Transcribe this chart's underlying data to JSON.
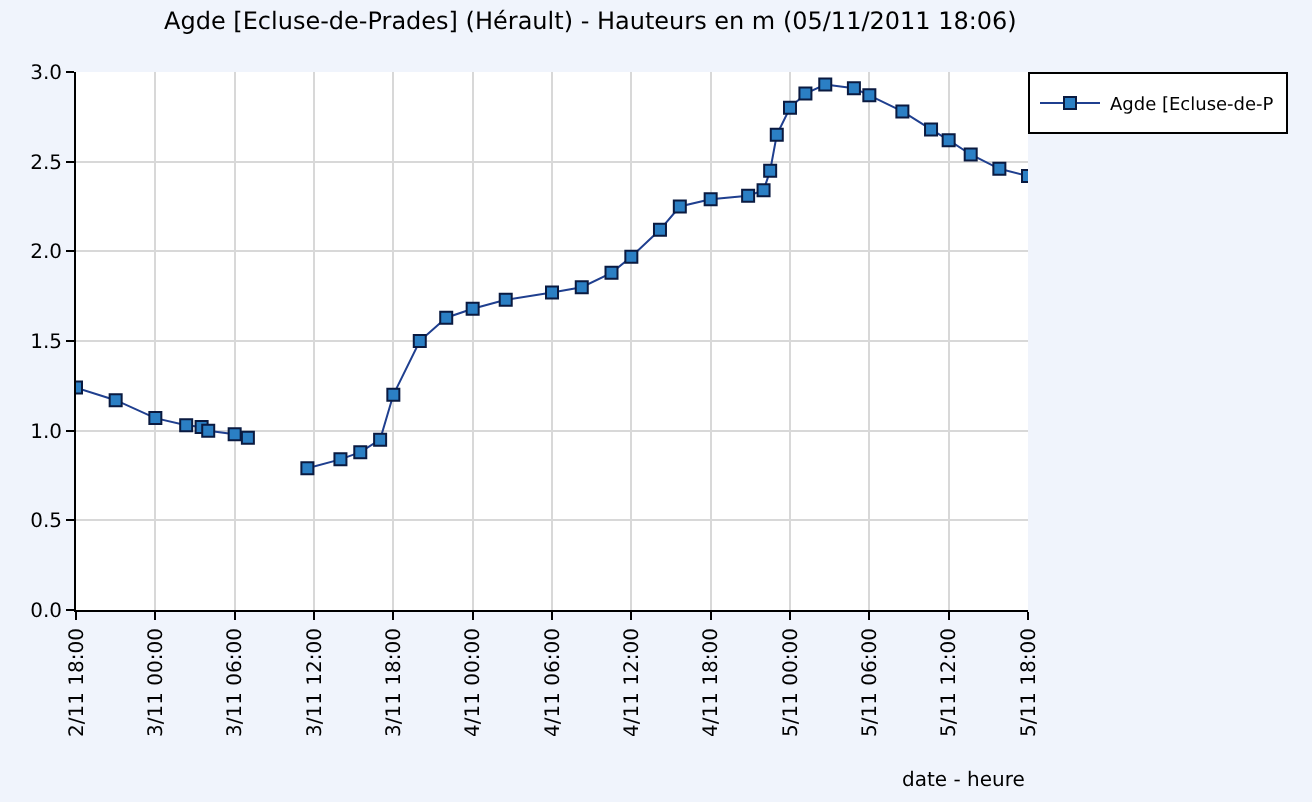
{
  "chart_data": {
    "type": "line",
    "title": "Agde [Ecluse-de-Prades] (Hérault) - Hauteurs en m (05/11/2011 18:06)",
    "xlabel": "date - heure",
    "x": [
      "2011-11-02T18:00",
      "2011-11-02T21:00",
      "2011-11-03T00:00",
      "2011-11-03T02:20",
      "2011-11-03T03:30",
      "2011-11-03T04:00",
      "2011-11-03T06:00",
      "2011-11-03T07:00",
      "2011-11-03T09:00",
      "2011-11-03T11:30",
      "2011-11-03T14:00",
      "2011-11-03T15:30",
      "2011-11-03T17:00",
      "2011-11-03T18:00",
      "2011-11-03T20:00",
      "2011-11-03T22:00",
      "2011-11-04T00:00",
      "2011-11-04T02:30",
      "2011-11-04T06:00",
      "2011-11-04T08:15",
      "2011-11-04T10:30",
      "2011-11-04T12:00",
      "2011-11-04T14:10",
      "2011-11-04T15:40",
      "2011-11-04T18:00",
      "2011-11-04T20:50",
      "2011-11-04T22:00",
      "2011-11-04T22:30",
      "2011-11-04T23:00",
      "2011-11-05T00:00",
      "2011-11-05T01:10",
      "2011-11-05T02:40",
      "2011-11-05T04:50",
      "2011-11-05T06:00",
      "2011-11-05T08:30",
      "2011-11-05T10:40",
      "2011-11-05T12:00",
      "2011-11-05T13:40",
      "2011-11-05T15:50",
      "2011-11-05T18:00"
    ],
    "series": [
      {
        "name": "Agde [Ecluse-de-P",
        "color": "#2b7fc4",
        "values": [
          1.24,
          1.17,
          1.07,
          1.03,
          1.02,
          1.0,
          0.98,
          0.96,
          null,
          0.79,
          0.84,
          0.88,
          0.95,
          1.2,
          1.5,
          1.63,
          1.68,
          1.73,
          1.77,
          1.8,
          1.88,
          1.97,
          2.12,
          2.25,
          2.29,
          2.31,
          2.34,
          2.45,
          2.65,
          2.8,
          2.88,
          2.93,
          2.91,
          2.87,
          2.78,
          2.68,
          2.62,
          2.54,
          2.46,
          2.42
        ]
      }
    ],
    "xlim": [
      "2011-11-02T18:00",
      "2011-11-05T18:00"
    ],
    "xticks": [
      {
        "value": "2011-11-02T18:00",
        "label": "2/11 18:00"
      },
      {
        "value": "2011-11-03T00:00",
        "label": "3/11 00:00"
      },
      {
        "value": "2011-11-03T06:00",
        "label": "3/11 06:00"
      },
      {
        "value": "2011-11-03T12:00",
        "label": "3/11 12:00"
      },
      {
        "value": "2011-11-03T18:00",
        "label": "3/11 18:00"
      },
      {
        "value": "2011-11-04T00:00",
        "label": "4/11 00:00"
      },
      {
        "value": "2011-11-04T06:00",
        "label": "4/11 06:00"
      },
      {
        "value": "2011-11-04T12:00",
        "label": "4/11 12:00"
      },
      {
        "value": "2011-11-04T18:00",
        "label": "4/11 18:00"
      },
      {
        "value": "2011-11-05T00:00",
        "label": "5/11 00:00"
      },
      {
        "value": "2011-11-05T06:00",
        "label": "5/11 06:00"
      },
      {
        "value": "2011-11-05T12:00",
        "label": "5/11 12:00"
      },
      {
        "value": "2011-11-05T18:00",
        "label": "5/11 18:00"
      }
    ],
    "ylim": [
      0,
      3
    ],
    "yticks": [
      {
        "value": 0,
        "label": "0.0"
      },
      0.5,
      {
        "value": 1,
        "label": "1.0"
      },
      1.5,
      {
        "value": 2,
        "label": "2.0"
      },
      2.5,
      {
        "value": 3,
        "label": "3.0"
      }
    ],
    "grid": true,
    "legend": "top right",
    "marker": "square",
    "line_style": "solid"
  }
}
